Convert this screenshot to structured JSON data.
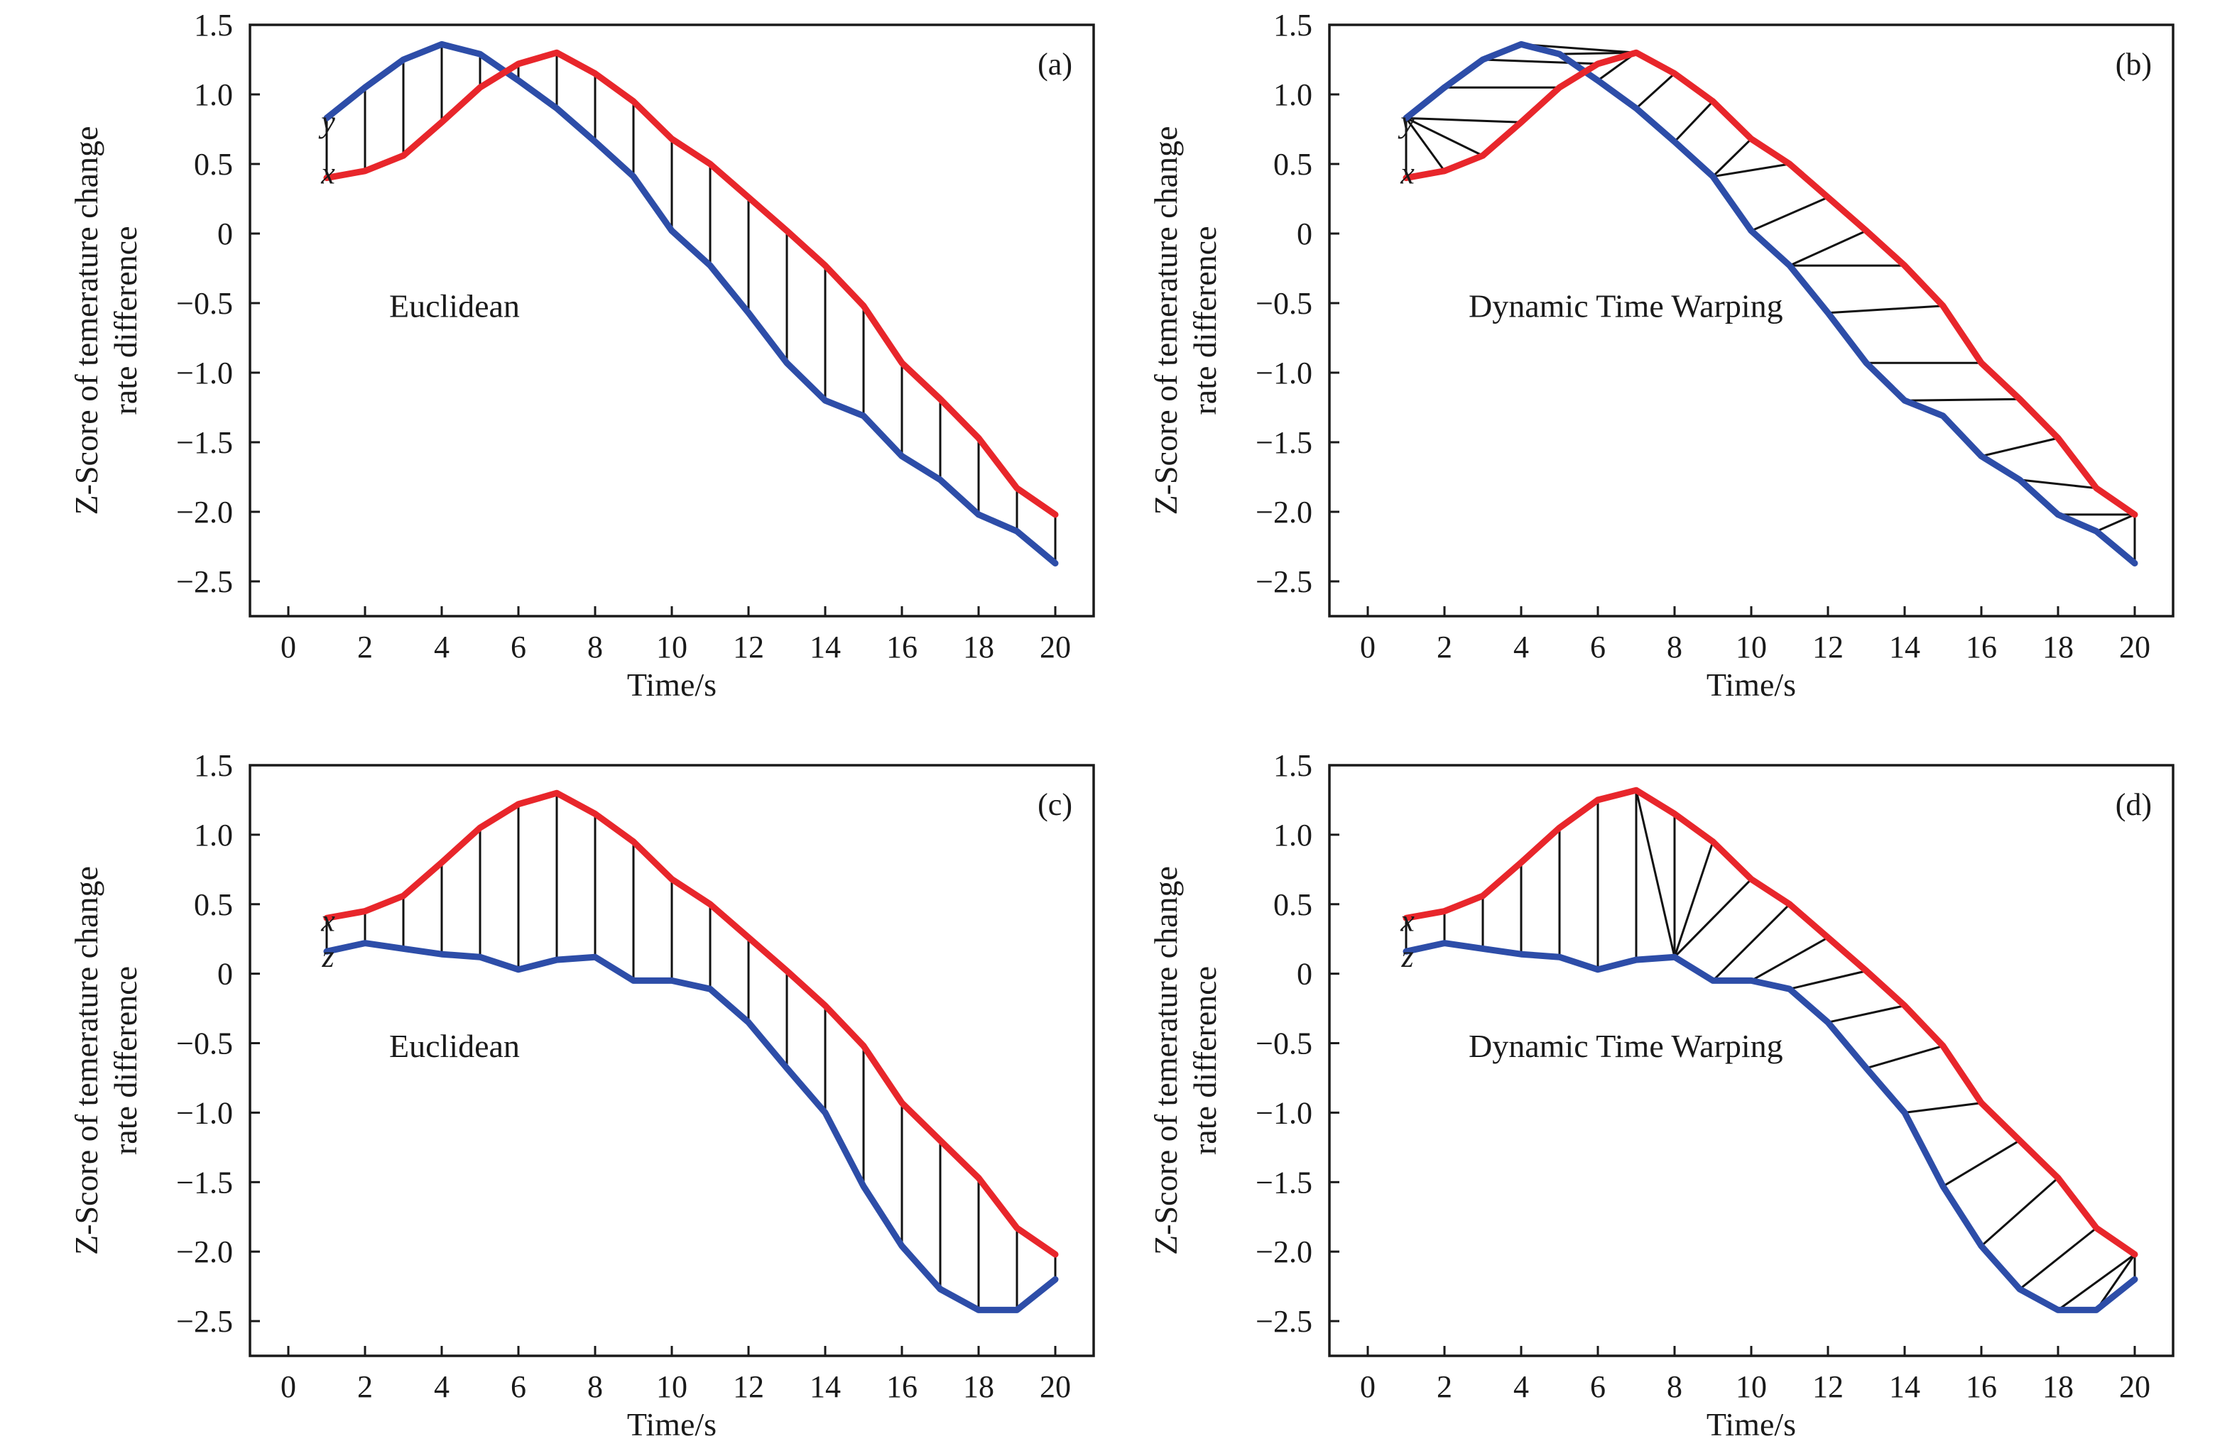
{
  "chart_data": [
    {
      "type": "line",
      "panel_label": "(a)",
      "method_label": "Euclidean",
      "xlabel": "Time/s",
      "ylabel_lines": [
        "Z-Score of temerature change",
        "rate difference"
      ],
      "xlim": [
        -1,
        21
      ],
      "ylim": [
        -2.75,
        1.5
      ],
      "x_ticks": [
        0,
        2,
        4,
        6,
        8,
        10,
        12,
        14,
        16,
        18,
        20
      ],
      "x_tick_labels": [
        "0",
        "2",
        "4",
        "6",
        "8",
        "10",
        "12",
        "14",
        "16",
        "18",
        "20"
      ],
      "y_ticks": [
        1.5,
        1.0,
        0.5,
        0,
        -0.5,
        -1.0,
        -1.5,
        -2.0,
        -2.5
      ],
      "y_tick_labels": [
        "1.5",
        "1.0",
        "0.5",
        "0",
        "−0.5",
        "−1.0",
        "−1.5",
        "−2.0",
        "−2.5"
      ],
      "x": [
        1,
        2,
        3,
        4,
        5,
        6,
        7,
        8,
        9,
        10,
        11,
        12,
        13,
        14,
        15,
        16,
        17,
        18,
        19,
        20
      ],
      "series": [
        {
          "name": "x",
          "color": "#e8262b",
          "values": [
            0.4,
            0.45,
            0.56,
            0.8,
            1.05,
            1.22,
            1.3,
            1.15,
            0.95,
            0.68,
            0.5,
            0.26,
            0.02,
            -0.23,
            -0.52,
            -0.93,
            -1.19,
            -1.47,
            -1.83,
            -2.02
          ]
        },
        {
          "name": "y",
          "color": "#2d4da8",
          "values": [
            0.83,
            1.05,
            1.25,
            1.36,
            1.29,
            1.1,
            0.9,
            0.66,
            0.41,
            0.02,
            -0.23,
            -0.57,
            -0.93,
            -1.2,
            -1.31,
            -1.6,
            -1.77,
            -2.02,
            -2.14,
            -2.37
          ]
        }
      ],
      "series_tags": [
        {
          "text": "y",
          "value": 0.8
        },
        {
          "text": "x",
          "value": 0.43
        }
      ],
      "alignment": [
        [
          1,
          1
        ],
        [
          2,
          2
        ],
        [
          3,
          3
        ],
        [
          4,
          4
        ],
        [
          5,
          5
        ],
        [
          6,
          6
        ],
        [
          7,
          7
        ],
        [
          8,
          8
        ],
        [
          9,
          9
        ],
        [
          10,
          10
        ],
        [
          11,
          11
        ],
        [
          12,
          12
        ],
        [
          13,
          13
        ],
        [
          14,
          14
        ],
        [
          15,
          15
        ],
        [
          16,
          16
        ],
        [
          17,
          17
        ],
        [
          18,
          18
        ],
        [
          19,
          19
        ],
        [
          20,
          20
        ]
      ]
    },
    {
      "type": "line",
      "panel_label": "(b)",
      "method_label": "Dynamic Time Warping",
      "xlabel": "Time/s",
      "ylabel_lines": [
        "Z-Score of temerature change",
        "rate difference"
      ],
      "xlim": [
        -1,
        21
      ],
      "ylim": [
        -2.75,
        1.5
      ],
      "x_ticks": [
        0,
        2,
        4,
        6,
        8,
        10,
        12,
        14,
        16,
        18,
        20
      ],
      "x_tick_labels": [
        "0",
        "2",
        "4",
        "6",
        "8",
        "10",
        "12",
        "14",
        "16",
        "18",
        "20"
      ],
      "y_ticks": [
        1.5,
        1.0,
        0.5,
        0,
        -0.5,
        -1.0,
        -1.5,
        -2.0,
        -2.5
      ],
      "y_tick_labels": [
        "1.5",
        "1.0",
        "0.5",
        "0",
        "−0.5",
        "−1.0",
        "−1.5",
        "−2.0",
        "−2.5"
      ],
      "x": [
        1,
        2,
        3,
        4,
        5,
        6,
        7,
        8,
        9,
        10,
        11,
        12,
        13,
        14,
        15,
        16,
        17,
        18,
        19,
        20
      ],
      "series": [
        {
          "name": "x",
          "color": "#e8262b",
          "values": [
            0.4,
            0.45,
            0.56,
            0.8,
            1.05,
            1.22,
            1.3,
            1.15,
            0.95,
            0.68,
            0.5,
            0.26,
            0.02,
            -0.23,
            -0.52,
            -0.93,
            -1.19,
            -1.47,
            -1.83,
            -2.02
          ]
        },
        {
          "name": "y",
          "color": "#2d4da8",
          "values": [
            0.83,
            1.05,
            1.25,
            1.36,
            1.29,
            1.1,
            0.9,
            0.66,
            0.41,
            0.02,
            -0.23,
            -0.57,
            -0.93,
            -1.2,
            -1.31,
            -1.6,
            -1.77,
            -2.02,
            -2.14,
            -2.37
          ]
        }
      ],
      "series_tags": [
        {
          "text": "y",
          "value": 0.8
        },
        {
          "text": "x",
          "value": 0.43
        }
      ],
      "alignment": [
        [
          1,
          1
        ],
        [
          2,
          1
        ],
        [
          3,
          1
        ],
        [
          4,
          1
        ],
        [
          5,
          2
        ],
        [
          6,
          3
        ],
        [
          7,
          4
        ],
        [
          7,
          5
        ],
        [
          7,
          6
        ],
        [
          8,
          7
        ],
        [
          9,
          8
        ],
        [
          10,
          9
        ],
        [
          11,
          9
        ],
        [
          12,
          10
        ],
        [
          13,
          11
        ],
        [
          14,
          11
        ],
        [
          15,
          12
        ],
        [
          16,
          13
        ],
        [
          17,
          14
        ],
        [
          18,
          16
        ],
        [
          19,
          17
        ],
        [
          20,
          18
        ],
        [
          20,
          19
        ],
        [
          20,
          20
        ]
      ]
    },
    {
      "type": "line",
      "panel_label": "(c)",
      "method_label": "Euclidean",
      "xlabel": "Time/s",
      "ylabel_lines": [
        "Z-Score of temerature change",
        "rate difference"
      ],
      "xlim": [
        -1,
        21
      ],
      "ylim": [
        -2.75,
        1.5
      ],
      "x_ticks": [
        0,
        2,
        4,
        6,
        8,
        10,
        12,
        14,
        16,
        18,
        20
      ],
      "x_tick_labels": [
        "0",
        "2",
        "4",
        "6",
        "8",
        "10",
        "12",
        "14",
        "16",
        "18",
        "20"
      ],
      "y_ticks": [
        1.5,
        1.0,
        0.5,
        0,
        -0.5,
        -1.0,
        -1.5,
        -2.0,
        -2.5
      ],
      "y_tick_labels": [
        "1.5",
        "1.0",
        "0.5",
        "0",
        "−0.5",
        "−1.0",
        "−1.5",
        "−2.0",
        "−2.5"
      ],
      "x": [
        1,
        2,
        3,
        4,
        5,
        6,
        7,
        8,
        9,
        10,
        11,
        12,
        13,
        14,
        15,
        16,
        17,
        18,
        19,
        20
      ],
      "series": [
        {
          "name": "x",
          "color": "#e8262b",
          "values": [
            0.4,
            0.45,
            0.56,
            0.8,
            1.05,
            1.22,
            1.3,
            1.15,
            0.95,
            0.68,
            0.5,
            0.26,
            0.02,
            -0.23,
            -0.52,
            -0.93,
            -1.2,
            -1.47,
            -1.83,
            -2.02
          ]
        },
        {
          "name": "z",
          "color": "#2d4da8",
          "values": [
            0.16,
            0.22,
            0.18,
            0.14,
            0.12,
            0.03,
            0.1,
            0.12,
            -0.05,
            -0.05,
            -0.11,
            -0.35,
            -0.68,
            -1.0,
            -1.53,
            -1.96,
            -2.27,
            -2.42,
            -2.42,
            -2.2
          ]
        }
      ],
      "series_tags": [
        {
          "text": "x",
          "value": 0.38
        },
        {
          "text": "z",
          "value": 0.12
        }
      ],
      "alignment": [
        [
          1,
          1
        ],
        [
          2,
          2
        ],
        [
          3,
          3
        ],
        [
          4,
          4
        ],
        [
          5,
          5
        ],
        [
          6,
          6
        ],
        [
          7,
          7
        ],
        [
          8,
          8
        ],
        [
          9,
          9
        ],
        [
          10,
          10
        ],
        [
          11,
          11
        ],
        [
          12,
          12
        ],
        [
          13,
          13
        ],
        [
          14,
          14
        ],
        [
          15,
          15
        ],
        [
          16,
          16
        ],
        [
          17,
          17
        ],
        [
          18,
          18
        ],
        [
          19,
          19
        ],
        [
          20,
          20
        ]
      ]
    },
    {
      "type": "line",
      "panel_label": "(d)",
      "method_label": "Dynamic Time Warping",
      "xlabel": "Time/s",
      "ylabel_lines": [
        "Z-Score of temerature change",
        "rate difference"
      ],
      "xlim": [
        -1,
        21
      ],
      "ylim": [
        -2.75,
        1.5
      ],
      "x_ticks": [
        0,
        2,
        4,
        6,
        8,
        10,
        12,
        14,
        16,
        18,
        20
      ],
      "x_tick_labels": [
        "0",
        "2",
        "4",
        "6",
        "8",
        "10",
        "12",
        "14",
        "16",
        "18",
        "20"
      ],
      "y_ticks": [
        1.5,
        1.0,
        0.5,
        0,
        -0.5,
        -1.0,
        -1.5,
        -2.0,
        -2.5
      ],
      "y_tick_labels": [
        "1.5",
        "1.0",
        "0.5",
        "0",
        "−0.5",
        "−1.0",
        "−1.5",
        "−2.0",
        "−2.5"
      ],
      "x": [
        1,
        2,
        3,
        4,
        5,
        6,
        7,
        8,
        9,
        10,
        11,
        12,
        13,
        14,
        15,
        16,
        17,
        18,
        19,
        20
      ],
      "series": [
        {
          "name": "x",
          "color": "#e8262b",
          "values": [
            0.4,
            0.45,
            0.56,
            0.8,
            1.05,
            1.25,
            1.32,
            1.15,
            0.95,
            0.68,
            0.5,
            0.26,
            0.02,
            -0.23,
            -0.52,
            -0.93,
            -1.2,
            -1.47,
            -1.83,
            -2.02
          ]
        },
        {
          "name": "z",
          "color": "#2d4da8",
          "values": [
            0.16,
            0.22,
            0.18,
            0.14,
            0.12,
            0.03,
            0.1,
            0.12,
            -0.05,
            -0.05,
            -0.11,
            -0.35,
            -0.68,
            -1.0,
            -1.53,
            -1.96,
            -2.27,
            -2.42,
            -2.42,
            -2.2
          ]
        }
      ],
      "series_tags": [
        {
          "text": "x",
          "value": 0.38
        },
        {
          "text": "z",
          "value": 0.12
        }
      ],
      "alignment": [
        [
          1,
          1
        ],
        [
          2,
          2
        ],
        [
          3,
          3
        ],
        [
          4,
          4
        ],
        [
          5,
          5
        ],
        [
          6,
          6
        ],
        [
          7,
          7
        ],
        [
          7,
          8
        ],
        [
          8,
          8
        ],
        [
          9,
          8
        ],
        [
          10,
          8
        ],
        [
          11,
          9
        ],
        [
          12,
          10
        ],
        [
          13,
          11
        ],
        [
          14,
          12
        ],
        [
          15,
          13
        ],
        [
          16,
          14
        ],
        [
          17,
          15
        ],
        [
          18,
          16
        ],
        [
          19,
          17
        ],
        [
          20,
          18
        ],
        [
          20,
          19
        ],
        [
          20,
          20
        ]
      ]
    }
  ]
}
